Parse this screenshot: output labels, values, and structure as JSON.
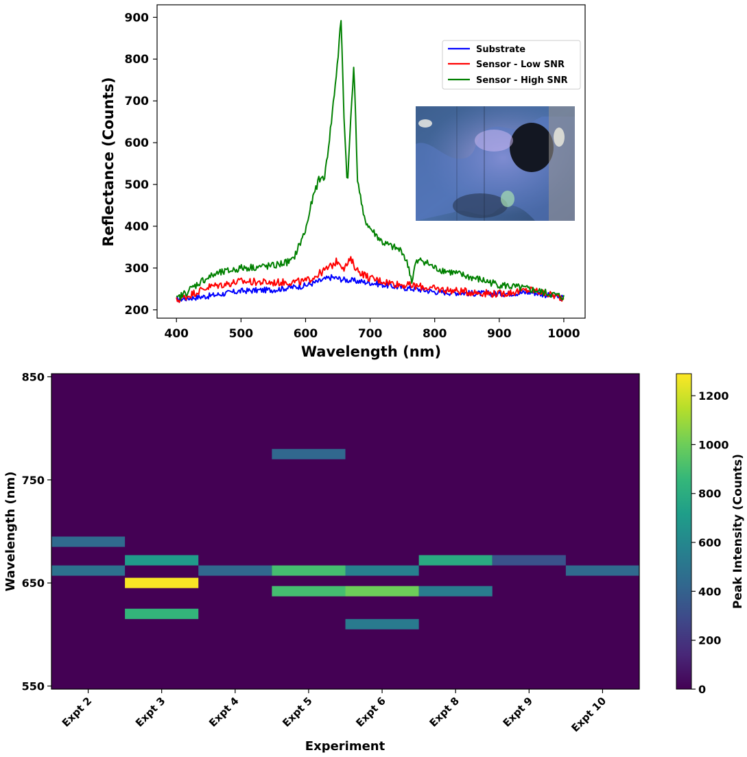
{
  "colors": {
    "substrate": "#0000ff",
    "low_snr": "#ff0000",
    "high_snr": "#008000",
    "viridis": [
      "#440154",
      "#482878",
      "#3e4989",
      "#31688e",
      "#26828e",
      "#1f9e89",
      "#35b779",
      "#6ece58",
      "#b5de2b",
      "#fde725"
    ]
  },
  "chart_data": [
    {
      "type": "line",
      "xlabel": "Wavelength (nm)",
      "ylabel": "Reflectance (Counts)",
      "xlim": [
        370,
        1033
      ],
      "ylim": [
        180,
        930
      ],
      "xticks": [
        400,
        500,
        600,
        700,
        800,
        900,
        1000
      ],
      "yticks": [
        200,
        300,
        400,
        500,
        600,
        700,
        800,
        900
      ],
      "legend_position": "upper-right",
      "inset": "hyperspectral image of the sensor",
      "series": [
        {
          "name": "Substrate",
          "color_key": "substrate",
          "x": [
            400,
            450,
            500,
            550,
            600,
            620,
            640,
            660,
            700,
            740,
            780,
            800,
            850,
            900,
            950,
            1000
          ],
          "y": [
            225,
            233,
            245,
            248,
            258,
            268,
            278,
            272,
            265,
            255,
            248,
            243,
            240,
            238,
            242,
            228
          ]
        },
        {
          "name": "Sensor - Low SNR",
          "color_key": "low_snr",
          "x": [
            400,
            450,
            500,
            550,
            600,
            620,
            640,
            650,
            660,
            670,
            680,
            700,
            740,
            780,
            800,
            850,
            900,
            950,
            1000
          ],
          "y": [
            222,
            255,
            268,
            265,
            268,
            285,
            305,
            318,
            300,
            320,
            295,
            275,
            262,
            255,
            250,
            243,
            238,
            248,
            228
          ]
        },
        {
          "name": "Sensor - High SNR",
          "color_key": "high_snr",
          "x": [
            400,
            440,
            460,
            500,
            550,
            580,
            600,
            610,
            620,
            630,
            640,
            650,
            655,
            660,
            665,
            670,
            675,
            680,
            690,
            700,
            720,
            750,
            760,
            765,
            770,
            780,
            800,
            850,
            900,
            950,
            1000
          ],
          "y": [
            225,
            270,
            285,
            300,
            305,
            318,
            390,
            460,
            510,
            520,
            650,
            800,
            895,
            640,
            495,
            660,
            795,
            520,
            420,
            395,
            360,
            340,
            300,
            265,
            310,
            320,
            300,
            280,
            260,
            248,
            230
          ]
        }
      ]
    },
    {
      "type": "heatmap",
      "xlabel": "Experiment",
      "ylabel": "Wavelength (nm)",
      "categories": [
        "Expt 2",
        "Expt 3",
        "Expt 4",
        "Expt 5",
        "Expt 6",
        "Expt 8",
        "Expt 9",
        "Expt 10"
      ],
      "ylim": [
        547,
        853
      ],
      "yticks": [
        550,
        650,
        750,
        850
      ],
      "band_width_nm": 10,
      "cells": [
        {
          "expt": 0,
          "wl": 690,
          "value": 440
        },
        {
          "expt": 0,
          "wl": 662,
          "value": 480
        },
        {
          "expt": 1,
          "wl": 672,
          "value": 700
        },
        {
          "expt": 1,
          "wl": 650,
          "value": 1280
        },
        {
          "expt": 1,
          "wl": 620,
          "value": 850
        },
        {
          "expt": 2,
          "wl": 662,
          "value": 430
        },
        {
          "expt": 3,
          "wl": 775,
          "value": 430
        },
        {
          "expt": 3,
          "wl": 662,
          "value": 900
        },
        {
          "expt": 3,
          "wl": 642,
          "value": 900
        },
        {
          "expt": 4,
          "wl": 662,
          "value": 560
        },
        {
          "expt": 4,
          "wl": 642,
          "value": 1000
        },
        {
          "expt": 4,
          "wl": 610,
          "value": 530
        },
        {
          "expt": 5,
          "wl": 672,
          "value": 790
        },
        {
          "expt": 5,
          "wl": 642,
          "value": 540
        },
        {
          "expt": 6,
          "wl": 672,
          "value": 330
        },
        {
          "expt": 7,
          "wl": 662,
          "value": 440
        }
      ],
      "colorbar": {
        "label": "Peak Intensity (Counts)",
        "min": 0,
        "max": 1290,
        "ticks": [
          0,
          200,
          400,
          600,
          800,
          1000,
          1200
        ]
      }
    }
  ]
}
